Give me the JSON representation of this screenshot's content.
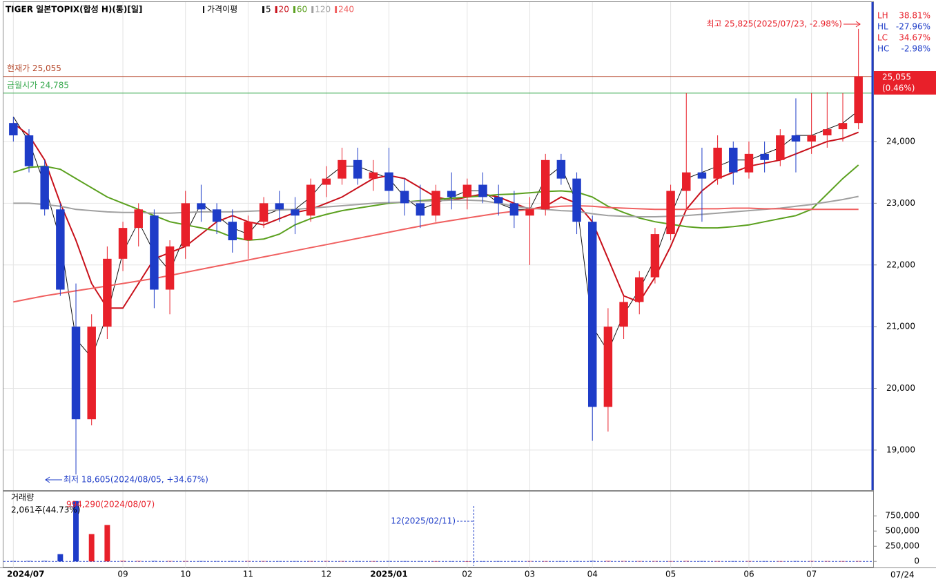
{
  "chart_data": [
    {
      "type": "candlestick",
      "title": "TIGER 일본TOPIX(합성 H)(통)[일]",
      "ma_label": "가격이평",
      "categories": [
        "2024/07",
        null,
        null,
        null,
        null,
        null,
        null,
        "09",
        null,
        null,
        null,
        "10",
        null,
        null,
        null,
        "11",
        null,
        null,
        null,
        null,
        "12",
        null,
        null,
        null,
        "2025/01",
        null,
        null,
        null,
        null,
        "02",
        null,
        null,
        null,
        "03",
        null,
        null,
        null,
        "04",
        null,
        null,
        null,
        null,
        "05",
        null,
        null,
        null,
        null,
        "06",
        null,
        null,
        null,
        "07",
        null,
        null,
        null
      ],
      "open": [
        24300,
        24100,
        23600,
        22900,
        21000,
        19500,
        21000,
        22100,
        22600,
        22800,
        21600,
        22300,
        23000,
        22900,
        22700,
        22400,
        22700,
        23000,
        22900,
        22800,
        23300,
        23400,
        23700,
        23400,
        23500,
        23200,
        23000,
        22800,
        23200,
        23100,
        23300,
        23100,
        23000,
        22800,
        22900,
        23700,
        23400,
        22700,
        19700,
        21000,
        21400,
        21800,
        22500,
        23200,
        23500,
        23400,
        23900,
        23500,
        23800,
        23700,
        24100,
        24000,
        24100,
        24200,
        24300
      ],
      "high": [
        24400,
        24200,
        23700,
        23000,
        21700,
        21200,
        22300,
        22700,
        23000,
        22900,
        22400,
        23200,
        23300,
        23000,
        22900,
        22800,
        23100,
        23200,
        23100,
        23400,
        23600,
        23900,
        23900,
        23700,
        23900,
        23400,
        23300,
        23300,
        23500,
        23400,
        23500,
        23300,
        23200,
        23100,
        23800,
        23800,
        23500,
        22800,
        21300,
        21500,
        21900,
        22600,
        23300,
        24785,
        23900,
        24100,
        24000,
        24000,
        24000,
        24200,
        24700,
        24785,
        24800,
        24785,
        25825
      ],
      "low": [
        24000,
        23500,
        22800,
        21500,
        18605,
        19400,
        20800,
        21900,
        22300,
        21300,
        21200,
        22100,
        22700,
        22500,
        22200,
        22100,
        22600,
        22700,
        22500,
        22700,
        23100,
        23300,
        23300,
        23200,
        23000,
        22800,
        22600,
        22700,
        22900,
        22900,
        23000,
        22800,
        22600,
        22000,
        22800,
        23300,
        22500,
        19150,
        19300,
        20800,
        21200,
        21700,
        22400,
        22900,
        22700,
        23300,
        23300,
        23400,
        23500,
        23600,
        23500,
        23800,
        23900,
        24000,
        24200
      ],
      "close": [
        24100,
        23600,
        22900,
        21600,
        19500,
        21000,
        22100,
        22600,
        22900,
        21600,
        22300,
        23000,
        22900,
        22700,
        22400,
        22700,
        23000,
        22900,
        22800,
        23300,
        23400,
        23700,
        23400,
        23500,
        23200,
        23000,
        22800,
        23200,
        23100,
        23300,
        23100,
        23000,
        22800,
        22900,
        23700,
        23400,
        22700,
        19700,
        21000,
        21400,
        21800,
        22500,
        23200,
        23500,
        23400,
        23900,
        23500,
        23800,
        23700,
        24100,
        24000,
        24100,
        24200,
        24300,
        25055
      ],
      "up_color": "#e8202a",
      "down_color": "#1e3cc8",
      "ylim": [
        18350,
        26260
      ],
      "yticks": [
        {
          "value": 19000,
          "label": "19,000"
        },
        {
          "value": 20000,
          "label": "20,000"
        },
        {
          "value": 21000,
          "label": "21,000"
        },
        {
          "value": 22000,
          "label": "22,000"
        },
        {
          "value": 23000,
          "label": "23,000"
        },
        {
          "value": 24000,
          "label": "24,000"
        }
      ],
      "grid": true,
      "series": [
        {
          "name": "5",
          "color": "#111111",
          "values": [
            24400,
            24000,
            23300,
            22400,
            20800,
            20500,
            21200,
            22200,
            22700,
            22200,
            21900,
            22500,
            23000,
            22800,
            22600,
            22500,
            22800,
            22900,
            22900,
            23100,
            23400,
            23600,
            23600,
            23500,
            23400,
            23100,
            22900,
            23000,
            23100,
            23200,
            23200,
            23000,
            22900,
            22900,
            23400,
            23600,
            23000,
            21000,
            20600,
            21200,
            21600,
            22100,
            22800,
            23400,
            23500,
            23600,
            23700,
            23700,
            23800,
            23900,
            24100,
            24100,
            24200,
            24300,
            24500
          ]
        },
        {
          "name": "20",
          "color": "#c8101a",
          "values": [
            24300,
            24100,
            23700,
            23000,
            22400,
            21700,
            21300,
            21300,
            21700,
            22100,
            22200,
            22300,
            22500,
            22700,
            22800,
            22700,
            22650,
            22750,
            22850,
            22900,
            23000,
            23100,
            23250,
            23400,
            23450,
            23400,
            23250,
            23100,
            23050,
            23100,
            23150,
            23100,
            23000,
            22900,
            22950,
            23100,
            23000,
            22700,
            22100,
            21500,
            21400,
            21800,
            22300,
            22900,
            23200,
            23400,
            23500,
            23600,
            23650,
            23700,
            23800,
            23900,
            24000,
            24050,
            24150
          ]
        },
        {
          "name": "60",
          "color": "#5aa01e",
          "values": [
            23500,
            23580,
            23600,
            23550,
            23400,
            23250,
            23100,
            23000,
            22900,
            22800,
            22700,
            22650,
            22600,
            22550,
            22450,
            22400,
            22420,
            22500,
            22650,
            22750,
            22820,
            22880,
            22920,
            22960,
            23000,
            23020,
            23040,
            23060,
            23080,
            23100,
            23120,
            23140,
            23150,
            23170,
            23190,
            23200,
            23180,
            23100,
            22950,
            22850,
            22760,
            22700,
            22660,
            22620,
            22600,
            22600,
            22620,
            22650,
            22700,
            22750,
            22800,
            22900,
            23150,
            23400,
            23620
          ]
        },
        {
          "name": "120",
          "color": "#a0a0a0",
          "values": [
            23000,
            23000,
            22980,
            22950,
            22900,
            22880,
            22860,
            22850,
            22850,
            22840,
            22840,
            22850,
            22860,
            22860,
            22860,
            22870,
            22880,
            22890,
            22900,
            22920,
            22940,
            22960,
            22980,
            23000,
            23010,
            23020,
            23030,
            23040,
            23050,
            23050,
            23040,
            23000,
            22950,
            22920,
            22900,
            22880,
            22870,
            22830,
            22800,
            22790,
            22780,
            22780,
            22790,
            22800,
            22820,
            22840,
            22860,
            22880,
            22900,
            22920,
            22950,
            22980,
            23020,
            23060,
            23110
          ]
        },
        {
          "name": "240",
          "color": "#f06060",
          "values": [
            21400,
            21450,
            21500,
            21540,
            21580,
            21620,
            21660,
            21700,
            21740,
            21780,
            21830,
            21880,
            21930,
            21980,
            22030,
            22080,
            22130,
            22180,
            22230,
            22280,
            22330,
            22380,
            22430,
            22480,
            22530,
            22580,
            22630,
            22680,
            22720,
            22760,
            22800,
            22840,
            22870,
            22900,
            22930,
            22950,
            22960,
            22950,
            22930,
            22920,
            22910,
            22900,
            22900,
            22900,
            22910,
            22910,
            22920,
            22920,
            22910,
            22910,
            22900,
            22900,
            22900,
            22900,
            22900
          ]
        }
      ],
      "price_lines": [
        {
          "label": "현재가 25,055",
          "value": 25055,
          "color": "#b5472a"
        },
        {
          "label": "금월시가 24,785",
          "value": 24785,
          "color": "#3aaa50"
        }
      ],
      "high_note": "최고 25,825(2025/07/23, -2.98%)",
      "low_note": "최저 18,605(2024/08/05, +34.67%)",
      "price_tag": "25,055",
      "price_tag_change": "(0.46%)",
      "stats": [
        {
          "label": "LH",
          "value": "38.81%"
        },
        {
          "label": "HL",
          "value": "-27.96%"
        },
        {
          "label": "LC",
          "value": "34.67%"
        },
        {
          "label": "HC",
          "value": "-2.98%"
        }
      ],
      "date": "07/24"
    },
    {
      "type": "bar",
      "title": "거래량",
      "subtitle": "2,061주(44.73%)",
      "max_note": "994,290(2024/08/07)",
      "min_note": "12(2025/02/11)",
      "values": [
        6000,
        8000,
        9000,
        120000,
        994290,
        450000,
        600000,
        9000,
        7000,
        8000,
        6000,
        5000,
        5000,
        4000,
        5000,
        6000,
        5000,
        4000,
        4000,
        5000,
        6000,
        5000,
        4000,
        4000,
        5000,
        4000,
        4000,
        3000,
        3000,
        12,
        3000,
        4000,
        4000,
        5000,
        4000,
        4000,
        5000,
        9000,
        8000,
        6000,
        5000,
        5000,
        4000,
        7000,
        5000,
        4000,
        4000,
        5000,
        4000,
        4000,
        5000,
        6000,
        5000,
        4000,
        5000
      ],
      "ylim": [
        -100000,
        1150000
      ],
      "yticks": [
        0,
        {
          "value": 250000,
          "label": "250,000"
        },
        {
          "value": 500000,
          "label": "500,000"
        },
        {
          "value": 750000,
          "label": "750,000"
        }
      ]
    }
  ]
}
